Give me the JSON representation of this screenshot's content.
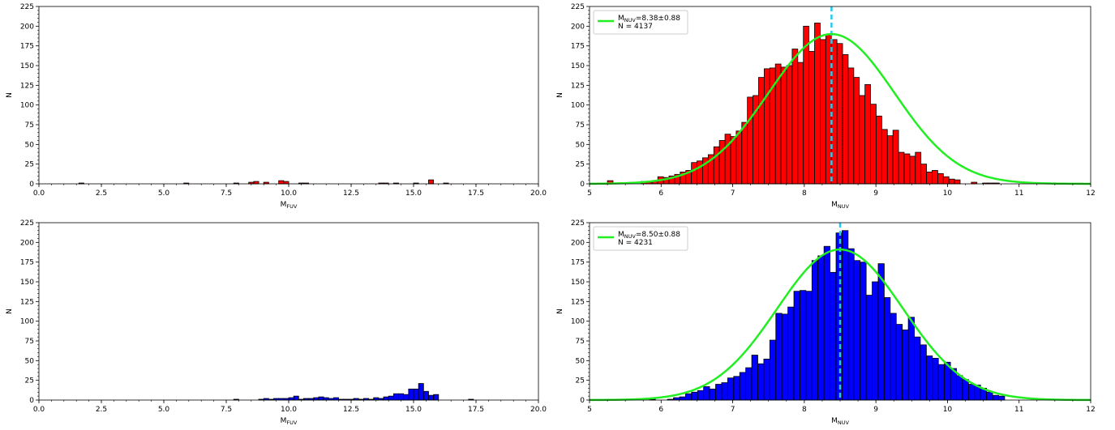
{
  "chart_data": [
    {
      "type": "bar",
      "id": "fuv_red",
      "xlabel": "M",
      "xlabel_sub": "FUV",
      "ylabel": "N",
      "xlim": [
        0,
        20
      ],
      "ylim": [
        0,
        225
      ],
      "xticks": [
        0.0,
        2.5,
        5.0,
        7.5,
        10.0,
        12.5,
        15.0,
        17.5,
        20.0
      ],
      "xtick_labels": [
        "0.0",
        "2.5",
        "5.0",
        "7.5",
        "10.0",
        "12.5",
        "15.0",
        "17.5",
        "20.0"
      ],
      "yticks": [
        0,
        25,
        50,
        75,
        100,
        125,
        150,
        175,
        200,
        225
      ],
      "ytick_labels": [
        "0",
        "25",
        "50",
        "75",
        "100",
        "125",
        "150",
        "175",
        "200",
        "225"
      ],
      "bar_color": "#ff0000",
      "bin_start": 0.0,
      "bin_width": 0.2,
      "values": [
        0,
        0,
        0,
        0,
        0,
        0,
        0,
        0,
        1,
        0,
        0,
        0,
        0,
        0,
        0,
        0,
        0,
        0,
        0,
        0,
        0,
        0,
        0,
        0,
        0,
        0,
        0,
        0,
        0,
        1,
        0,
        0,
        0,
        0,
        0,
        0,
        0,
        0,
        0,
        1,
        0,
        0,
        2,
        3,
        0,
        2,
        0,
        0,
        4,
        3,
        0,
        0,
        1,
        1,
        0,
        0,
        0,
        0,
        0,
        0,
        0,
        0,
        0,
        0,
        0,
        0,
        0,
        0,
        1,
        1,
        0,
        1,
        0,
        0,
        0,
        1,
        0,
        0,
        5,
        0,
        0,
        1,
        0,
        0,
        0,
        0,
        0,
        0,
        0,
        0,
        0,
        0,
        0,
        0,
        0,
        0,
        0,
        0,
        0,
        0
      ]
    },
    {
      "type": "bar",
      "id": "nuv_red",
      "xlabel": "M",
      "xlabel_sub": "NUV",
      "ylabel": "N",
      "xlim": [
        5,
        12
      ],
      "ylim": [
        0,
        225
      ],
      "xticks": [
        5,
        6,
        7,
        8,
        9,
        10,
        11,
        12
      ],
      "xtick_labels": [
        "5",
        "6",
        "7",
        "8",
        "9",
        "10",
        "11",
        "12"
      ],
      "yticks": [
        0,
        25,
        50,
        75,
        100,
        125,
        150,
        175,
        200,
        225
      ],
      "ytick_labels": [
        "0",
        "25",
        "50",
        "75",
        "100",
        "125",
        "150",
        "175",
        "200",
        "225"
      ],
      "bar_color": "#ff0000",
      "bin_start": 5.25,
      "bin_width": 0.0782,
      "values": [
        4,
        0,
        0,
        0,
        0,
        0,
        3,
        2,
        4,
        9,
        8,
        10,
        12,
        15,
        17,
        27,
        29,
        33,
        37,
        47,
        55,
        63,
        60,
        67,
        78,
        110,
        112,
        135,
        146,
        147,
        152,
        148,
        150,
        171,
        154,
        200,
        168,
        204,
        183,
        189,
        183,
        178,
        164,
        147,
        135,
        112,
        126,
        101,
        86,
        69,
        61,
        68,
        40,
        38,
        35,
        40,
        25,
        15,
        17,
        13,
        9,
        6,
        5,
        0,
        0,
        2,
        0,
        1,
        1,
        1
      ]
    },
    {
      "type": "bar",
      "id": "fuv_blue",
      "xlabel": "M",
      "xlabel_sub": "FUV",
      "ylabel": "N",
      "xlim": [
        0,
        20
      ],
      "ylim": [
        0,
        225
      ],
      "xticks": [
        0.0,
        2.5,
        5.0,
        7.5,
        10.0,
        12.5,
        15.0,
        17.5,
        20.0
      ],
      "xtick_labels": [
        "0.0",
        "2.5",
        "5.0",
        "7.5",
        "10.0",
        "12.5",
        "15.0",
        "17.5",
        "20.0"
      ],
      "yticks": [
        0,
        25,
        50,
        75,
        100,
        125,
        150,
        175,
        200,
        225
      ],
      "ytick_labels": [
        "0",
        "25",
        "50",
        "75",
        "100",
        "125",
        "150",
        "175",
        "200",
        "225"
      ],
      "bar_color": "#0000ff",
      "bin_start": 0.0,
      "bin_width": 0.2,
      "values": [
        0,
        0,
        0,
        0,
        0,
        0,
        0,
        0,
        0,
        0,
        0,
        0,
        0,
        0,
        0,
        0,
        0,
        0,
        0,
        0,
        0,
        0,
        0,
        0,
        0,
        0,
        0,
        0,
        0,
        0,
        0,
        0,
        0,
        0,
        0,
        0,
        0,
        0,
        0,
        1,
        0,
        0,
        0,
        0,
        1,
        2,
        1,
        2,
        2,
        2,
        3,
        5,
        1,
        2,
        2,
        3,
        4,
        3,
        2,
        3,
        1,
        1,
        1,
        2,
        1,
        2,
        1,
        3,
        2,
        4,
        5,
        8,
        8,
        7,
        14,
        14,
        21,
        11,
        6,
        7,
        0,
        0,
        0,
        0,
        0,
        0,
        1,
        0,
        0,
        0,
        0,
        0,
        0,
        0,
        0,
        0,
        0,
        0,
        0,
        0
      ]
    },
    {
      "type": "bar",
      "id": "nuv_blue",
      "xlabel": "M",
      "xlabel_sub": "NUV",
      "ylabel": "N",
      "xlim": [
        5,
        12
      ],
      "ylim": [
        0,
        225
      ],
      "xticks": [
        5,
        6,
        7,
        8,
        9,
        10,
        11,
        12
      ],
      "xtick_labels": [
        "5",
        "6",
        "7",
        "8",
        "9",
        "10",
        "11",
        "12"
      ],
      "yticks": [
        0,
        25,
        50,
        75,
        100,
        125,
        150,
        175,
        200,
        225
      ],
      "ytick_labels": [
        "0",
        "25",
        "50",
        "75",
        "100",
        "125",
        "150",
        "175",
        "200",
        "225"
      ],
      "bar_color": "#0000ff",
      "bin_start": 5.5,
      "bin_width": 0.0841,
      "values": [
        1,
        0,
        0,
        0,
        1,
        0,
        0,
        1,
        3,
        4,
        8,
        10,
        12,
        17,
        14,
        20,
        22,
        28,
        30,
        35,
        41,
        57,
        46,
        52,
        76,
        110,
        109,
        118,
        138,
        139,
        138,
        177,
        183,
        195,
        162,
        212,
        215,
        192,
        177,
        175,
        133,
        150,
        173,
        130,
        110,
        96,
        89,
        105,
        80,
        70,
        56,
        53,
        45,
        48,
        40,
        31,
        26,
        20,
        19,
        15,
        10,
        6,
        5,
        0,
        0,
        0
      ]
    }
  ],
  "fits": [
    null,
    {
      "legend_label_main": "M",
      "legend_label_sub": "NUV",
      "legend_label_rest": "=8.38±0.88",
      "legend_n": "N = 4137",
      "mean": 8.38,
      "sigma": 0.88,
      "peak": 190,
      "fit_color": "#22ee22",
      "mean_line_color": "#22ccee"
    },
    null,
    {
      "legend_label_main": "M",
      "legend_label_sub": "NUV",
      "legend_label_rest": "=8.50±0.88",
      "legend_n": "N = 4231",
      "mean": 8.5,
      "sigma": 0.88,
      "peak": 191,
      "fit_color": "#22ee22",
      "mean_line_color": "#22ccee"
    }
  ]
}
